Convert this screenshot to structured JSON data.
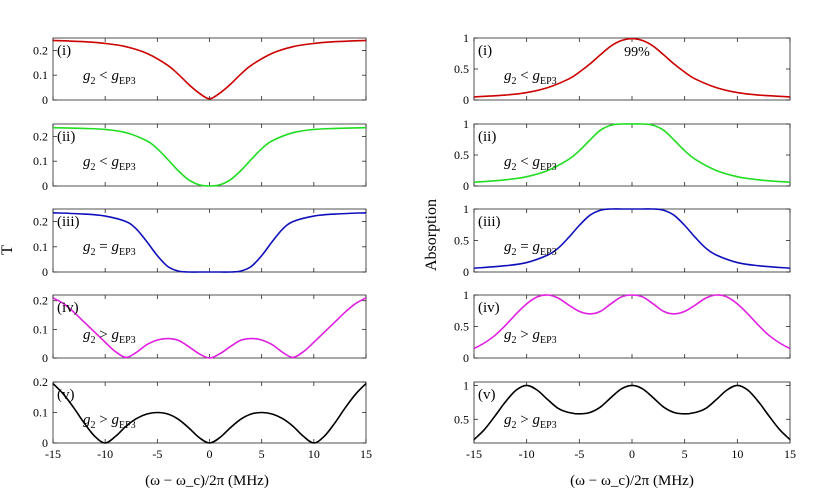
{
  "figure": {
    "left_column": {
      "y_label": "T",
      "x_label": "(ω − ω_c)/2π (MHz)",
      "x_range": [
        -15,
        15
      ],
      "x_ticks": [
        "-15",
        "-10",
        "-5",
        "0",
        "5",
        "10",
        "15"
      ]
    },
    "right_column": {
      "y_label": "Absorption",
      "x_label": "(ω − ω_c)/2π (MHz)",
      "x_range": [
        -15,
        15
      ],
      "x_ticks": [
        "-15",
        "-10",
        "-5",
        "0",
        "5",
        "10",
        "15"
      ]
    }
  },
  "chart_data": [
    {
      "type": "line",
      "column": "left",
      "panel": "(i)",
      "condition": {
        "lhs": "g",
        "lhs_sub": "2",
        "rel": "<",
        "rhs": "g",
        "rhs_sub": "EP3"
      },
      "color": "#cc0000",
      "ylim": [
        0,
        0.25
      ],
      "yticks": [
        "0",
        "0.1",
        "0.2"
      ],
      "x": [
        -15,
        -12,
        -10,
        -8,
        -6,
        -4,
        -3,
        -2,
        -1,
        0,
        1,
        2,
        3,
        4,
        6,
        8,
        10,
        12,
        15
      ],
      "y": [
        0.24,
        0.235,
        0.228,
        0.215,
        0.188,
        0.14,
        0.104,
        0.063,
        0.028,
        0.005,
        0.028,
        0.063,
        0.104,
        0.14,
        0.188,
        0.215,
        0.228,
        0.235,
        0.24
      ]
    },
    {
      "type": "line",
      "column": "left",
      "panel": "(ii)",
      "condition": {
        "lhs": "g",
        "lhs_sub": "2",
        "rel": "<",
        "rhs": "g",
        "rhs_sub": "EP3"
      },
      "color": "#22dd22",
      "ylim": [
        0,
        0.25
      ],
      "yticks": [
        "0",
        "0.1",
        "0.2"
      ],
      "x": [
        -15,
        -12,
        -10,
        -8,
        -6,
        -5,
        -4,
        -3,
        -2,
        -1,
        0,
        1,
        2,
        3,
        4,
        5,
        6,
        8,
        10,
        12,
        15
      ],
      "y": [
        0.235,
        0.232,
        0.228,
        0.215,
        0.182,
        0.15,
        0.107,
        0.062,
        0.025,
        0.005,
        0.0,
        0.005,
        0.025,
        0.062,
        0.107,
        0.15,
        0.182,
        0.215,
        0.228,
        0.232,
        0.235
      ]
    },
    {
      "type": "line",
      "column": "left",
      "panel": "(iii)",
      "condition": {
        "lhs": "g",
        "lhs_sub": "2",
        "rel": "=",
        "rhs": "g",
        "rhs_sub": "EP3"
      },
      "color": "#1010bb",
      "ylim": [
        0,
        0.25
      ],
      "yticks": [
        "0",
        "0.1",
        "0.2"
      ],
      "x": [
        -15,
        -12,
        -10,
        -8,
        -7,
        -6,
        -5,
        -4,
        -3,
        -2,
        -1,
        0,
        1,
        2,
        3,
        4,
        5,
        6,
        7,
        8,
        10,
        12,
        15
      ],
      "y": [
        0.235,
        0.23,
        0.222,
        0.2,
        0.17,
        0.12,
        0.065,
        0.022,
        0.004,
        0.0,
        0.0,
        0.0,
        0.0,
        0.0,
        0.004,
        0.022,
        0.065,
        0.12,
        0.17,
        0.2,
        0.222,
        0.23,
        0.235
      ]
    },
    {
      "type": "line",
      "column": "left",
      "panel": "(iv)",
      "condition": {
        "lhs": "g",
        "lhs_sub": "2",
        "rel": ">",
        "rhs": "g",
        "rhs_sub": "EP3"
      },
      "color": "#e020e0",
      "ylim": [
        0,
        0.22
      ],
      "yticks": [
        "0",
        "0.1",
        "0.2"
      ],
      "x": [
        -15,
        -14,
        -13,
        -12,
        -11,
        -10,
        -9,
        -8,
        -7,
        -6,
        -5,
        -4,
        -3,
        -2,
        -1,
        0,
        1,
        2,
        3,
        4,
        5,
        6,
        7,
        8,
        9,
        10,
        11,
        12,
        13,
        14,
        15
      ],
      "y": [
        0.21,
        0.19,
        0.16,
        0.125,
        0.09,
        0.055,
        0.022,
        0.002,
        0.02,
        0.047,
        0.063,
        0.068,
        0.062,
        0.04,
        0.015,
        0.0,
        0.015,
        0.04,
        0.062,
        0.068,
        0.063,
        0.047,
        0.02,
        0.002,
        0.022,
        0.055,
        0.09,
        0.125,
        0.16,
        0.19,
        0.21
      ]
    },
    {
      "type": "line",
      "column": "left",
      "panel": "(v)",
      "condition": {
        "lhs": "g",
        "lhs_sub": "2",
        "rel": ">",
        "rhs": "g",
        "rhs_sub": "EP3"
      },
      "color": "#000000",
      "ylim": [
        0,
        0.2
      ],
      "yticks": [
        "0",
        "0.1",
        "0.2"
      ],
      "x": [
        -15,
        -14,
        -13,
        -12,
        -11,
        -10,
        -9,
        -8,
        -7,
        -6,
        -5,
        -4,
        -3,
        -2,
        -1,
        0,
        1,
        2,
        3,
        4,
        5,
        6,
        7,
        8,
        9,
        10,
        11,
        12,
        13,
        14,
        15
      ],
      "y": [
        0.195,
        0.16,
        0.115,
        0.065,
        0.022,
        0.0,
        0.022,
        0.055,
        0.08,
        0.095,
        0.1,
        0.095,
        0.078,
        0.05,
        0.018,
        0.0,
        0.018,
        0.05,
        0.078,
        0.095,
        0.1,
        0.095,
        0.08,
        0.055,
        0.022,
        0.0,
        0.022,
        0.065,
        0.115,
        0.16,
        0.195
      ]
    },
    {
      "type": "line",
      "column": "right",
      "panel": "(i)",
      "annotation": "99%",
      "condition": {
        "lhs": "g",
        "lhs_sub": "2",
        "rel": "<",
        "rhs": "g",
        "rhs_sub": "EP3"
      },
      "color": "#cc0000",
      "ylim": [
        0,
        1
      ],
      "yticks": [
        "0",
        "0.5",
        "1"
      ],
      "x": [
        -15,
        -12,
        -10,
        -8,
        -6,
        -5,
        -4,
        -3,
        -2,
        -1,
        0,
        1,
        2,
        3,
        4,
        5,
        6,
        8,
        10,
        12,
        15
      ],
      "y": [
        0.05,
        0.08,
        0.12,
        0.2,
        0.34,
        0.45,
        0.58,
        0.73,
        0.87,
        0.96,
        0.99,
        0.96,
        0.87,
        0.73,
        0.58,
        0.45,
        0.34,
        0.2,
        0.12,
        0.08,
        0.05
      ]
    },
    {
      "type": "line",
      "column": "right",
      "panel": "(ii)",
      "condition": {
        "lhs": "g",
        "lhs_sub": "2",
        "rel": "<",
        "rhs": "g",
        "rhs_sub": "EP3"
      },
      "color": "#22dd22",
      "ylim": [
        0,
        1
      ],
      "yticks": [
        "0",
        "0.5",
        "1"
      ],
      "x": [
        -15,
        -12,
        -10,
        -8,
        -6,
        -5,
        -4,
        -3,
        -2,
        -1,
        0,
        1,
        2,
        3,
        4,
        5,
        6,
        8,
        10,
        12,
        15
      ],
      "y": [
        0.06,
        0.1,
        0.15,
        0.25,
        0.43,
        0.57,
        0.74,
        0.9,
        0.98,
        1.0,
        1.0,
        1.0,
        0.98,
        0.9,
        0.74,
        0.57,
        0.43,
        0.25,
        0.15,
        0.1,
        0.06
      ]
    },
    {
      "type": "line",
      "column": "right",
      "panel": "(iii)",
      "condition": {
        "lhs": "g",
        "lhs_sub": "2",
        "rel": "=",
        "rhs": "g",
        "rhs_sub": "EP3"
      },
      "color": "#1010bb",
      "ylim": [
        0,
        1
      ],
      "yticks": [
        "0",
        "0.5",
        "1"
      ],
      "x": [
        -15,
        -12,
        -10,
        -8,
        -7,
        -6,
        -5,
        -4,
        -3,
        -2,
        -1,
        0,
        1,
        2,
        3,
        4,
        5,
        6,
        7,
        8,
        10,
        12,
        15
      ],
      "y": [
        0.06,
        0.1,
        0.15,
        0.27,
        0.38,
        0.55,
        0.74,
        0.9,
        0.98,
        1.0,
        1.0,
        1.0,
        1.0,
        1.0,
        0.98,
        0.9,
        0.74,
        0.55,
        0.38,
        0.27,
        0.15,
        0.1,
        0.06
      ]
    },
    {
      "type": "line",
      "column": "right",
      "panel": "(iv)",
      "condition": {
        "lhs": "g",
        "lhs_sub": "2",
        "rel": ">",
        "rhs": "g",
        "rhs_sub": "EP3"
      },
      "color": "#e020e0",
      "ylim": [
        0,
        1
      ],
      "yticks": [
        "0",
        "0.5",
        "1"
      ],
      "x": [
        -15,
        -14,
        -13,
        -12,
        -11,
        -10,
        -9,
        -8,
        -7,
        -6,
        -5,
        -4,
        -3,
        -2,
        -1,
        0,
        1,
        2,
        3,
        4,
        5,
        6,
        7,
        8,
        9,
        10,
        11,
        12,
        13,
        14,
        15
      ],
      "y": [
        0.15,
        0.24,
        0.36,
        0.52,
        0.7,
        0.86,
        0.97,
        1.0,
        0.95,
        0.84,
        0.74,
        0.7,
        0.74,
        0.86,
        0.97,
        1.0,
        0.97,
        0.86,
        0.74,
        0.7,
        0.74,
        0.84,
        0.95,
        1.0,
        0.97,
        0.86,
        0.7,
        0.52,
        0.36,
        0.24,
        0.15
      ]
    },
    {
      "type": "line",
      "column": "right",
      "panel": "(v)",
      "condition": {
        "lhs": "g",
        "lhs_sub": "2",
        "rel": ">",
        "rhs": "g",
        "rhs_sub": "EP3"
      },
      "color": "#000000",
      "ylim": [
        0.15,
        1.05
      ],
      "yticks": [
        "0.5",
        "1"
      ],
      "x": [
        -15,
        -14,
        -13,
        -12,
        -11,
        -10,
        -9,
        -8,
        -7,
        -6,
        -5,
        -4,
        -3,
        -2,
        -1,
        0,
        1,
        2,
        3,
        4,
        5,
        6,
        7,
        8,
        9,
        10,
        11,
        12,
        13,
        14,
        15
      ],
      "y": [
        0.2,
        0.35,
        0.55,
        0.76,
        0.93,
        1.0,
        0.93,
        0.79,
        0.66,
        0.6,
        0.58,
        0.6,
        0.68,
        0.82,
        0.95,
        1.0,
        0.95,
        0.82,
        0.68,
        0.6,
        0.58,
        0.6,
        0.66,
        0.79,
        0.93,
        1.0,
        0.93,
        0.76,
        0.55,
        0.35,
        0.2
      ]
    }
  ]
}
